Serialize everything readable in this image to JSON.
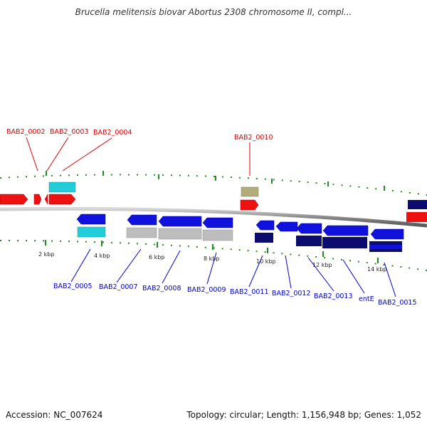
{
  "title": "Brucella melitensis biovar Abortus 2308 chromosome II, compl...",
  "footer": {
    "accession": "Accession: NC_007624",
    "summary": "Topology: circular; Length: 1,156,948 bp; Genes: 1,052"
  },
  "ruler": {
    "ticks": [
      "2 kbp",
      "4 kbp",
      "6 kbp",
      "8 kbp",
      "10 kbp",
      "12 kbp",
      "14 kbp"
    ]
  },
  "gene_labels": {
    "top": [
      "BAB2_0002",
      "BAB2_0003",
      "BAB2_0004",
      "BAB2_0010"
    ],
    "bottom": [
      "BAB2_0005",
      "BAB2_0007",
      "BAB2_0008",
      "BAB2_0009",
      "BAB2_0011",
      "BAB2_0012",
      "BAB2_0013",
      "entE",
      "BAB2_0015"
    ]
  },
  "colors": {
    "forward_strand": "#ee1111",
    "reverse_strand": "#1111dd",
    "navy": "#0c0c6e",
    "cyan": "#22ccd8",
    "gray": "#bdbdbd",
    "olive": "#b0ad7a",
    "tick_green": "#1f8a1f",
    "backbone": "#8a8a8a"
  }
}
